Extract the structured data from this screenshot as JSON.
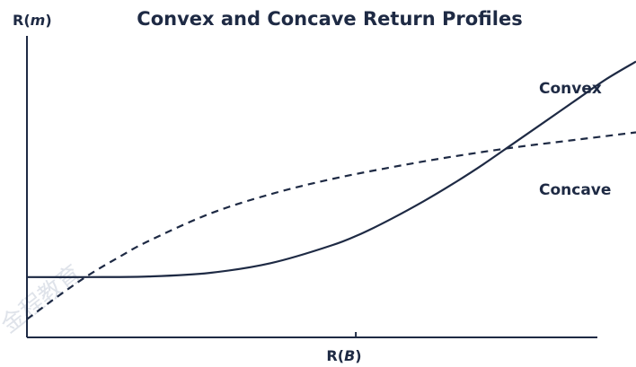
{
  "chart_data": {
    "type": "line",
    "title": "Convex and Concave Return Profiles",
    "ylabel": "R(m)",
    "ylabel_prefix": "R(",
    "ylabel_var": "m",
    "ylabel_suffix": ")",
    "xlabel": "R(B)",
    "xlabel_prefix": "R(",
    "xlabel_var": "B",
    "xlabel_suffix": ")",
    "xlim": [
      0,
      10
    ],
    "ylim": [
      0,
      10
    ],
    "grid": false,
    "xticks": [
      5.4
    ],
    "series": [
      {
        "name": "Convex",
        "style": "solid",
        "x": [
          0,
          1,
          2,
          3,
          4,
          5,
          5.5,
          6,
          6.5,
          7,
          7.5,
          8,
          8.5,
          9,
          9.5,
          10
        ],
        "y": [
          2.0,
          2.0,
          2.02,
          2.14,
          2.46,
          3.05,
          3.45,
          3.95,
          4.5,
          5.1,
          5.75,
          6.45,
          7.15,
          7.85,
          8.55,
          9.15
        ]
      },
      {
        "name": "Concave",
        "style": "dashed",
        "x": [
          0,
          0.5,
          1,
          1.5,
          2,
          3,
          4,
          5,
          6,
          7,
          8,
          9,
          10
        ],
        "y": [
          0.6,
          1.35,
          2.05,
          2.65,
          3.2,
          4.1,
          4.75,
          5.25,
          5.65,
          6.0,
          6.3,
          6.55,
          6.8
        ]
      }
    ]
  },
  "watermark": {
    "text": "金程教育",
    "color": "#dfe3ea"
  }
}
